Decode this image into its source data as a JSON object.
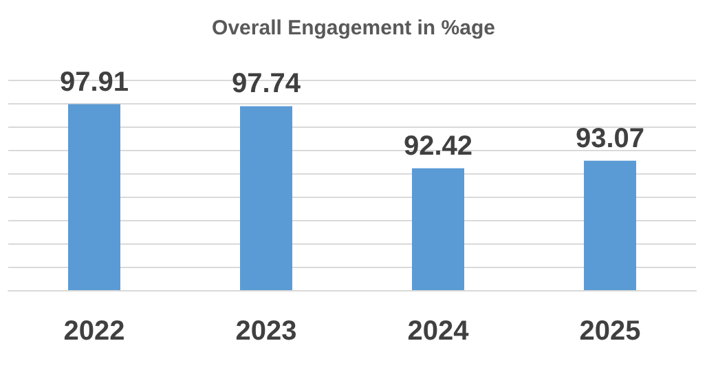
{
  "chart_data": {
    "type": "bar",
    "title": "Overall Engagement in %age",
    "categories": [
      "2022",
      "2023",
      "2024",
      "2025"
    ],
    "values": [
      97.91,
      97.74,
      92.42,
      93.07
    ],
    "color": "#5b9bd5",
    "ylim": [
      82,
      100
    ],
    "yticks": [
      {
        "value": 82,
        "label": null
      },
      {
        "value": 84,
        "label": null
      },
      {
        "value": 86,
        "label": null
      },
      {
        "value": 88,
        "label": null
      },
      {
        "value": 90,
        "label": null
      },
      {
        "value": 92,
        "label": null
      },
      {
        "value": 94,
        "label": null
      },
      {
        "value": 96,
        "label": null
      },
      {
        "value": 98,
        "label": null
      },
      {
        "value": 100,
        "label": null
      }
    ],
    "tick_labels": "x",
    "grid": "y",
    "data_labels": true
  }
}
